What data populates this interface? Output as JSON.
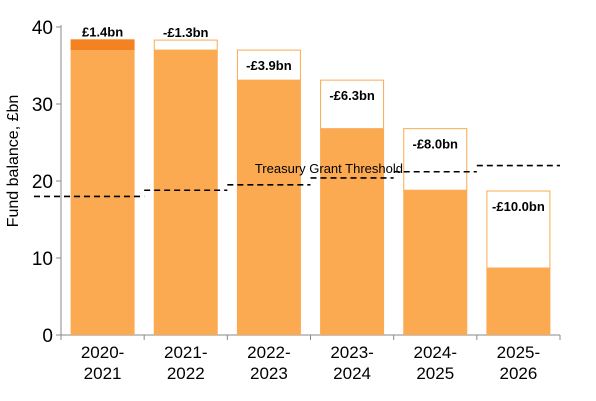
{
  "chart_data": {
    "type": "bar",
    "ylabel": "Fund balance, £bn",
    "ylim": [
      0,
      40
    ],
    "yticks": [
      0,
      10,
      20,
      30,
      40
    ],
    "categories": [
      [
        "2020-",
        "2021"
      ],
      [
        "2021-",
        "2022"
      ],
      [
        "2022-",
        "2023"
      ],
      [
        "2023-",
        "2024"
      ],
      [
        "2024-",
        "2025"
      ],
      [
        "2025-",
        "2026"
      ]
    ],
    "series": [
      {
        "values": [
          37.0,
          37.0,
          33.1,
          26.8,
          18.8,
          8.7
        ]
      }
    ],
    "change": [
      1.4,
      -1.3,
      -3.9,
      -6.3,
      -8.0,
      -10.0
    ],
    "data_labels": [
      "£1.4bn",
      "-£1.3bn",
      "-£3.9bn",
      "-£6.3bn",
      "-£8.0bn",
      "-£10.0bn"
    ],
    "threshold": {
      "label": "Treasury Grant Threshold",
      "values": [
        18.0,
        18.8,
        19.5,
        20.4,
        21.2,
        22.0
      ]
    },
    "grid": false,
    "legend": "none",
    "colors": {
      "bar": "#fbaa52",
      "increase": "#f58220",
      "decrease_outline": "#fbaa52",
      "threshold": "#000000",
      "axis": "#888888"
    }
  }
}
